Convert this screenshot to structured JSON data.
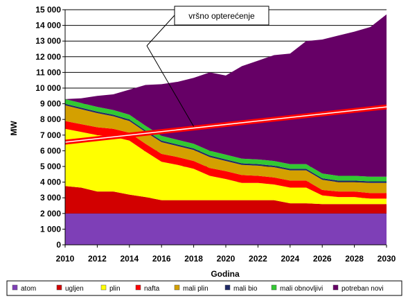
{
  "chart_data": {
    "type": "area",
    "title": "",
    "xlabel": "Godina",
    "ylabel": "MW",
    "xlim": [
      2010,
      2030
    ],
    "ylim": [
      0,
      15000
    ],
    "x_ticks": [
      2010,
      2012,
      2014,
      2016,
      2018,
      2020,
      2022,
      2024,
      2026,
      2028,
      2030
    ],
    "y_ticks": [
      0,
      1000,
      2000,
      3000,
      4000,
      5000,
      6000,
      7000,
      8000,
      9000,
      10000,
      11000,
      12000,
      13000,
      14000,
      15000
    ],
    "y_tick_labels": [
      "0",
      "1 000",
      "2 000",
      "3 000",
      "4 000",
      "5 000",
      "6 000",
      "7 000",
      "8 000",
      "9 000",
      "10 000",
      "11 000",
      "12 000",
      "13 000",
      "14 000",
      "15 000"
    ],
    "grid": "horizontal",
    "legend_position": "bottom",
    "stacked": true,
    "x": [
      2010,
      2011,
      2012,
      2013,
      2014,
      2015,
      2016,
      2017,
      2018,
      2019,
      2020,
      2021,
      2022,
      2023,
      2024,
      2025,
      2026,
      2027,
      2028,
      2029,
      2030
    ],
    "series": [
      {
        "name": "atom",
        "color": "#7e3fb7",
        "values": [
          2000,
          2000,
          2000,
          2000,
          2000,
          2000,
          2000,
          2000,
          2000,
          2000,
          2000,
          2000,
          2000,
          2000,
          2000,
          2000,
          2000,
          2000,
          2000,
          2000,
          2000
        ]
      },
      {
        "name": "ugljen",
        "color": "#d20000",
        "values": [
          1750,
          1650,
          1400,
          1400,
          1200,
          1050,
          850,
          850,
          850,
          850,
          850,
          850,
          850,
          850,
          650,
          650,
          600,
          600,
          600,
          600,
          600
        ]
      },
      {
        "name": "plin",
        "color": "#ffff00",
        "values": [
          3650,
          3550,
          3600,
          3500,
          3450,
          2900,
          2450,
          2250,
          2000,
          1550,
          1350,
          1100,
          1100,
          1000,
          1000,
          1000,
          550,
          450,
          450,
          350,
          350
        ]
      },
      {
        "name": "nafta",
        "color": "#ff0000",
        "values": [
          500,
          500,
          500,
          500,
          500,
          500,
          500,
          500,
          500,
          500,
          500,
          500,
          450,
          450,
          450,
          450,
          350,
          350,
          350,
          350,
          350
        ]
      },
      {
        "name": "mali plin",
        "color": "#d4a000",
        "values": [
          1000,
          950,
          900,
          800,
          750,
          750,
          750,
          700,
          700,
          700,
          650,
          650,
          650,
          650,
          650,
          650,
          650,
          600,
          600,
          650,
          650
        ]
      },
      {
        "name": "mali bio",
        "color": "#1f2a66",
        "values": [
          100,
          100,
          100,
          100,
          100,
          100,
          100,
          100,
          100,
          100,
          100,
          100,
          100,
          100,
          100,
          100,
          100,
          100,
          100,
          100,
          100
        ]
      },
      {
        "name": "mali obnovljivi",
        "color": "#32c832",
        "values": [
          300,
          300,
          300,
          300,
          300,
          300,
          300,
          300,
          300,
          300,
          300,
          300,
          300,
          300,
          300,
          300,
          300,
          300,
          300,
          300,
          300
        ]
      },
      {
        "name": "potreban novi",
        "color": "#660066",
        "values": [
          0,
          300,
          700,
          1000,
          1600,
          2600,
          3300,
          3700,
          4200,
          5000,
          5050,
          5900,
          6300,
          6750,
          7050,
          7850,
          8550,
          8950,
          9200,
          9550,
          10350
        ]
      }
    ],
    "peak_load": {
      "name": "vršno opterećenje",
      "color": "#ff0000",
      "x": [
        2010,
        2030
      ],
      "values": [
        6550,
        8800
      ]
    },
    "annotations": [
      {
        "text": "vršno opterećenje",
        "points_to": {
          "x": 2018,
          "y": 7550
        }
      }
    ]
  }
}
